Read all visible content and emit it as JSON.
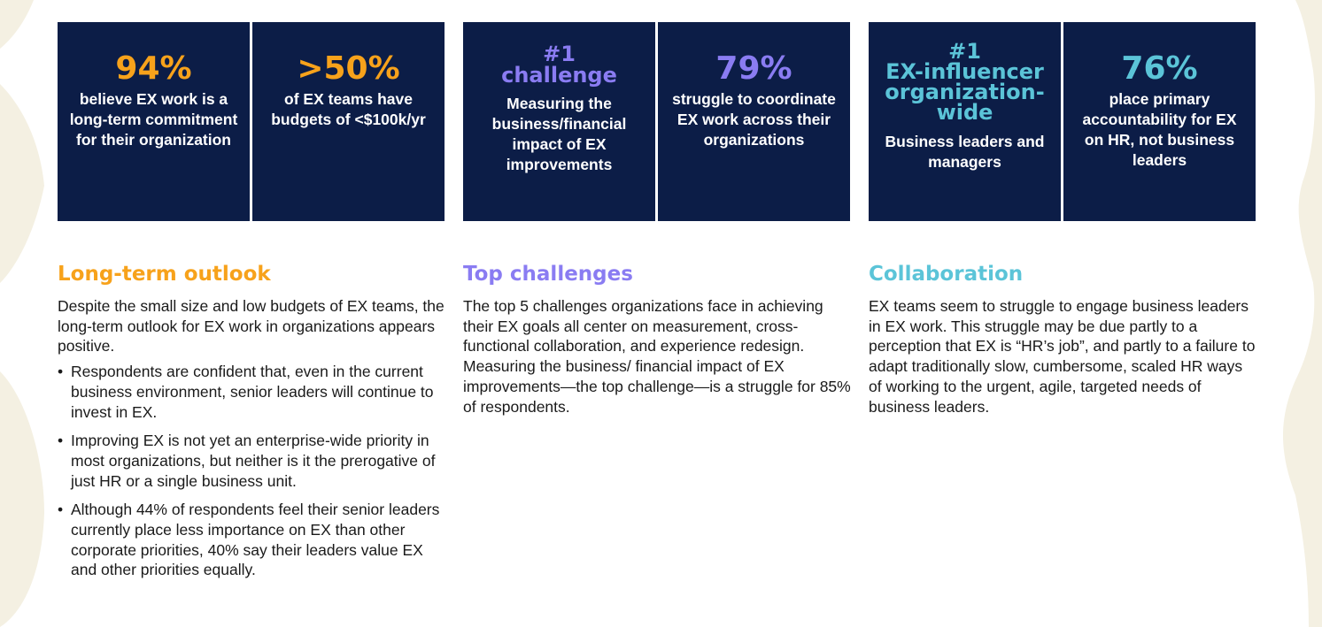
{
  "colors": {
    "card_bg": "#0c1d47",
    "orange": "#f7a21b",
    "purple": "#8a7cf2",
    "teal": "#5bc4d8",
    "text": "#1a1a1a",
    "decor": "#f4f0e2"
  },
  "cards": [
    {
      "stat": "94%",
      "desc": "believe EX work is a long-term commitment for their organization"
    },
    {
      "stat": ">50%",
      "desc": "of EX teams have budgets of <$100k/yr"
    },
    {
      "stat_top": "#1",
      "stat": "challenge",
      "desc": "Measuring the business/financial impact of EX improvements"
    },
    {
      "stat": "79%",
      "desc": "struggle to coordinate EX work across their organizations"
    },
    {
      "stat_top": "#1",
      "stat": "EX-influencer organization-wide",
      "desc": "Business leaders and managers"
    },
    {
      "stat": "76%",
      "desc": "place primary accountability for EX on HR, not business leaders"
    }
  ],
  "sections": {
    "long_term": {
      "heading": "Long-term outlook",
      "intro": "Despite the small size and low budgets of EX teams, the long-term outlook for EX work in organizations appears positive.",
      "bullets": [
        "Respondents are confident that, even in the current business environment, senior leaders will continue to invest in EX.",
        "Improving EX is not yet an enterprise-wide priority in most organizations, but neither is it the prerogative of just HR or a single business unit.",
        "Although 44% of respondents feel their senior leaders currently place less importance on EX than other corporate priorities, 40% say their leaders value EX and other priorities equally."
      ]
    },
    "challenges": {
      "heading": "Top challenges",
      "body": "The top 5 challenges organizations face in achieving their EX goals all center on measurement, cross-functional collaboration, and experience redesign. Measuring the business/ financial impact of EX improvements—the top challenge—is a struggle for 85% of respondents."
    },
    "collaboration": {
      "heading": "Collaboration",
      "body": "EX teams seem to struggle to engage business leaders in EX work. This struggle may be due partly to a perception that EX is “HR’s job”, and partly to a failure to adapt traditionally slow, cumbersome, scaled HR ways of working to the urgent, agile, targeted needs of business leaders."
    }
  }
}
